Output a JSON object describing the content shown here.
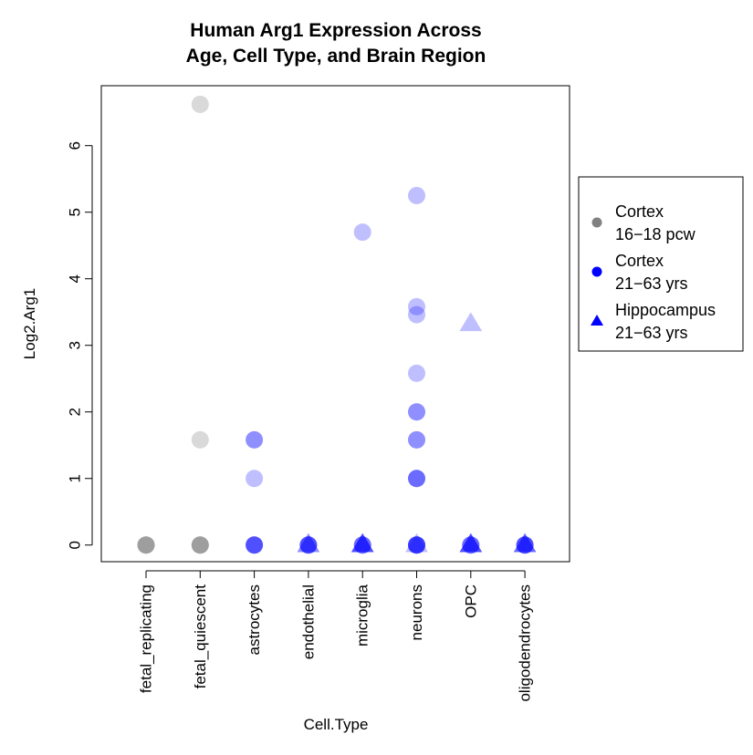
{
  "chart_data": {
    "type": "scatter",
    "title_lines": [
      "Human Arg1 Expression Across",
      "Age, Cell Type, and Brain Region"
    ],
    "xlabel": "Cell.Type",
    "ylabel": "Log2.Arg1",
    "categories": [
      "fetal_replicating",
      "fetal_quiescent",
      "astrocytes",
      "endothelial",
      "microglia",
      "neurons",
      "OPC",
      "oligodendrocytes"
    ],
    "yticks": [
      0,
      1,
      2,
      3,
      4,
      5,
      6
    ],
    "ylim": [
      -0.25,
      6.9
    ],
    "grid": false,
    "legend": {
      "placement": "right",
      "entries": [
        {
          "line1": "Cortex",
          "line2": "16−18 pcw",
          "shape": "circle",
          "color": "#808080"
        },
        {
          "line1": "Cortex",
          "line2": "21−63 yrs",
          "shape": "circle",
          "color": "#0000ff"
        },
        {
          "line1": "Hippocampus",
          "line2": "21−63 yrs",
          "shape": "triangle",
          "color": "#0000ff"
        }
      ]
    },
    "series": [
      {
        "group": "Cortex 16-18 pcw",
        "shape": "circle",
        "color": "#808080",
        "opacity": 0.3,
        "points": [
          {
            "category": "fetal_replicating",
            "y": 0
          },
          {
            "category": "fetal_replicating",
            "y": 0
          },
          {
            "category": "fetal_replicating",
            "y": 0
          },
          {
            "category": "fetal_replicating",
            "y": 0
          },
          {
            "category": "fetal_quiescent",
            "y": 6.62
          },
          {
            "category": "fetal_quiescent",
            "y": 1.58
          },
          {
            "category": "fetal_quiescent",
            "y": 0
          },
          {
            "category": "fetal_quiescent",
            "y": 0
          },
          {
            "category": "fetal_quiescent",
            "y": 0
          },
          {
            "category": "fetal_quiescent",
            "y": 0
          }
        ]
      },
      {
        "group": "Cortex 21-63 yrs",
        "shape": "circle",
        "color": "#0000ff",
        "opacity": 0.25,
        "points": [
          {
            "category": "astrocytes",
            "y": 1.58
          },
          {
            "category": "astrocytes",
            "y": 1.58
          },
          {
            "category": "astrocytes",
            "y": 1.0
          },
          {
            "category": "astrocytes",
            "y": 0
          },
          {
            "category": "astrocytes",
            "y": 0
          },
          {
            "category": "astrocytes",
            "y": 0
          },
          {
            "category": "astrocytes",
            "y": 0
          },
          {
            "category": "endothelial",
            "y": 0
          },
          {
            "category": "endothelial",
            "y": 0
          },
          {
            "category": "endothelial",
            "y": 0
          },
          {
            "category": "endothelial",
            "y": 0
          },
          {
            "category": "microglia",
            "y": 4.7
          },
          {
            "category": "microglia",
            "y": 0
          },
          {
            "category": "microglia",
            "y": 0
          },
          {
            "category": "microglia",
            "y": 0
          },
          {
            "category": "neurons",
            "y": 5.25
          },
          {
            "category": "neurons",
            "y": 3.58
          },
          {
            "category": "neurons",
            "y": 3.46
          },
          {
            "category": "neurons",
            "y": 2.58
          },
          {
            "category": "neurons",
            "y": 2.0
          },
          {
            "category": "neurons",
            "y": 2.0
          },
          {
            "category": "neurons",
            "y": 1.58
          },
          {
            "category": "neurons",
            "y": 1.58
          },
          {
            "category": "neurons",
            "y": 1.0
          },
          {
            "category": "neurons",
            "y": 1.0
          },
          {
            "category": "neurons",
            "y": 1.0
          },
          {
            "category": "neurons",
            "y": 0
          },
          {
            "category": "neurons",
            "y": 0
          },
          {
            "category": "neurons",
            "y": 0
          },
          {
            "category": "neurons",
            "y": 0
          },
          {
            "category": "neurons",
            "y": 0
          },
          {
            "category": "OPC",
            "y": 0
          },
          {
            "category": "OPC",
            "y": 0
          },
          {
            "category": "OPC",
            "y": 0
          },
          {
            "category": "oligodendrocytes",
            "y": 0
          },
          {
            "category": "oligodendrocytes",
            "y": 0
          },
          {
            "category": "oligodendrocytes",
            "y": 0
          },
          {
            "category": "oligodendrocytes",
            "y": 0
          }
        ]
      },
      {
        "group": "Hippocampus 21-63 yrs",
        "shape": "triangle",
        "color": "#0000ff",
        "opacity": 0.25,
        "points": [
          {
            "category": "endothelial",
            "y": 0
          },
          {
            "category": "endothelial",
            "y": 0
          },
          {
            "category": "microglia",
            "y": 0
          },
          {
            "category": "microglia",
            "y": 0
          },
          {
            "category": "microglia",
            "y": 0
          },
          {
            "category": "microglia",
            "y": 0
          },
          {
            "category": "neurons",
            "y": 0
          },
          {
            "category": "OPC",
            "y": 3.32
          },
          {
            "category": "OPC",
            "y": 0
          },
          {
            "category": "OPC",
            "y": 0
          },
          {
            "category": "OPC",
            "y": 0
          },
          {
            "category": "OPC",
            "y": 0
          },
          {
            "category": "oligodendrocytes",
            "y": 0
          },
          {
            "category": "oligodendrocytes",
            "y": 0
          },
          {
            "category": "oligodendrocytes",
            "y": 0
          }
        ]
      }
    ]
  }
}
